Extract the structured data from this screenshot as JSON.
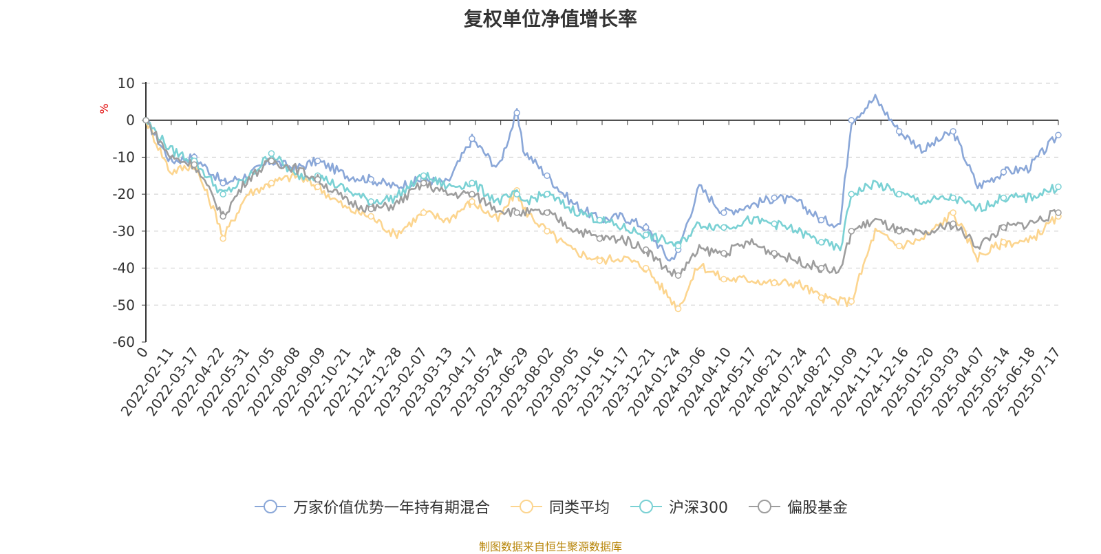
{
  "chart_data": {
    "type": "line",
    "title": "复权单位净值增长率",
    "ylabel": "%",
    "ylim": [
      -60,
      10
    ],
    "yticks": [
      10,
      0,
      -10,
      -20,
      -30,
      -40,
      -50,
      -60
    ],
    "grid": true,
    "legend_position": "bottom",
    "x_start": "2022-01-07",
    "x_end": "2025-07-31",
    "xtick_labels": [
      "0",
      "2022-02-11",
      "2022-03-17",
      "2022-04-22",
      "2022-05-31",
      "2022-07-05",
      "2022-08-08",
      "2022-09-09",
      "2022-10-21",
      "2022-11-24",
      "2022-12-28",
      "2023-02-07",
      "2023-03-13",
      "2023-04-17",
      "2023-05-24",
      "2023-06-29",
      "2023-08-02",
      "2023-09-05",
      "2023-10-16",
      "2023-11-17",
      "2023-12-21",
      "2024-01-24",
      "2024-03-06",
      "2024-04-10",
      "2024-05-17",
      "2024-06-21",
      "2024-07-24",
      "2024-08-27",
      "2024-10-09",
      "2024-11-12",
      "2024-12-16",
      "2025-01-20",
      "2025-03-03",
      "2025-04-07",
      "2025-05-14",
      "2025-06-18",
      "2025-07-17"
    ],
    "x": [
      "2022-01-07",
      "2022-02-11",
      "2022-03-17",
      "2022-04-22",
      "2022-04-27",
      "2022-05-31",
      "2022-07-05",
      "2022-08-08",
      "2022-09-09",
      "2022-10-21",
      "2022-11-24",
      "2022-12-28",
      "2023-02-07",
      "2023-03-13",
      "2023-04-17",
      "2023-05-24",
      "2023-06-20",
      "2023-06-29",
      "2023-08-02",
      "2023-09-05",
      "2023-10-16",
      "2023-11-17",
      "2023-12-21",
      "2024-01-24",
      "2024-02-05",
      "2024-03-06",
      "2024-04-10",
      "2024-05-17",
      "2024-06-21",
      "2024-07-24",
      "2024-08-27",
      "2024-09-23",
      "2024-10-09",
      "2024-11-12",
      "2024-12-16",
      "2025-01-20",
      "2025-03-03",
      "2025-04-07",
      "2025-05-14",
      "2025-06-18",
      "2025-07-31"
    ],
    "series": [
      {
        "name": "万家价值优势一年持有期混合",
        "color": "#8aa7d8",
        "values": [
          0,
          -11,
          -10,
          -16,
          -17,
          -15,
          -11,
          -13,
          -11,
          -15,
          -16,
          -18,
          -16,
          -17,
          -5,
          -13,
          2,
          -8,
          -15,
          -22,
          -27,
          -26,
          -29,
          -38,
          -35,
          -18,
          -25,
          -23,
          -21,
          -22,
          -27,
          -28,
          0,
          6,
          -3,
          -8,
          -3,
          -18,
          -14,
          -13,
          -4
        ]
      },
      {
        "name": "同类平均",
        "color": "#fcd58f",
        "values": [
          0,
          -14,
          -12,
          -28,
          -32,
          -20,
          -17,
          -15,
          -18,
          -24,
          -26,
          -31,
          -25,
          -27,
          -22,
          -27,
          -19,
          -24,
          -30,
          -35,
          -38,
          -37,
          -40,
          -48,
          -51,
          -39,
          -43,
          -43,
          -44,
          -44,
          -48,
          -49,
          -49,
          -30,
          -34,
          -32,
          -25,
          -37,
          -33,
          -33,
          -26
        ]
      },
      {
        "name": "沪深300",
        "color": "#7ad1d4",
        "values": [
          0,
          -8,
          -11,
          -19,
          -20,
          -16,
          -9,
          -15,
          -15,
          -19,
          -22,
          -21,
          -15,
          -18,
          -17,
          -22,
          -20,
          -22,
          -20,
          -24,
          -27,
          -29,
          -31,
          -33,
          -34,
          -28,
          -29,
          -27,
          -28,
          -30,
          -33,
          -35,
          -20,
          -17,
          -20,
          -22,
          -21,
          -24,
          -21,
          -21,
          -18
        ]
      },
      {
        "name": "偏股基金",
        "color": "#9d9d9d",
        "values": [
          0,
          -10,
          -12,
          -24,
          -26,
          -16,
          -11,
          -13,
          -16,
          -22,
          -24,
          -23,
          -17,
          -20,
          -20,
          -24,
          -25,
          -25,
          -25,
          -29,
          -32,
          -32,
          -35,
          -41,
          -42,
          -35,
          -36,
          -33,
          -36,
          -38,
          -40,
          -41,
          -30,
          -27,
          -30,
          -31,
          -28,
          -34,
          -29,
          -28,
          -25
        ]
      }
    ]
  },
  "legend": {
    "items": [
      "万家价值优势一年持有期混合",
      "同类平均",
      "沪深300",
      "偏股基金"
    ]
  },
  "source_text": "制图数据来自恒生聚源数据库"
}
